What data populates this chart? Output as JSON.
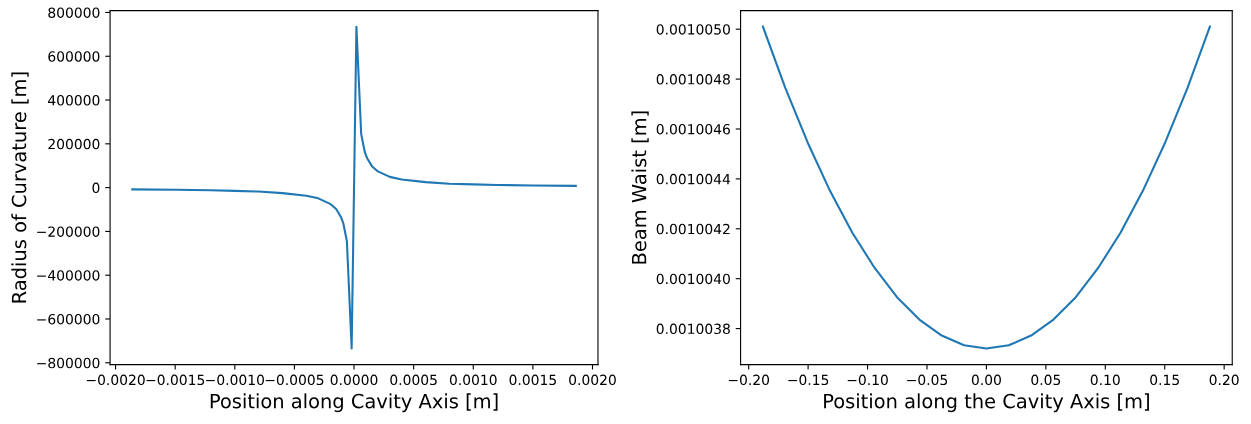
{
  "chart_data": [
    {
      "type": "line",
      "xlabel": "Position along Cavity Axis [m]",
      "ylabel": "Radius of Curvature [m]",
      "x": [
        -0.00186,
        -0.0015,
        -0.0012,
        -0.001,
        -0.0008,
        -0.0006,
        -0.0004,
        -0.0003,
        -0.0002,
        -0.00015,
        -0.00011,
        -9e-05,
        -6e-05,
        -2e-05,
        2e-05,
        6e-05,
        9e-05,
        0.00011,
        0.00015,
        0.0002,
        0.0003,
        0.0004,
        0.0006,
        0.0008,
        0.001,
        0.0012,
        0.0015,
        0.00186
      ],
      "series": [
        {
          "color": "#1f77b4",
          "values": [
            -8000,
            -10000,
            -12000,
            -15000,
            -18000,
            -25000,
            -37000,
            -49000,
            -74000,
            -98000,
            -134000,
            -163000,
            -245000,
            -735000,
            735000,
            245000,
            163000,
            134000,
            98000,
            74000,
            49000,
            37000,
            25000,
            18000,
            15000,
            12000,
            10000,
            8000
          ]
        }
      ],
      "xlim": [
        -0.002046,
        0.002046
      ],
      "ylim": [
        -808500,
        808500
      ],
      "xticks": [
        {
          "value": -0.002,
          "label": "−0.0020"
        },
        {
          "value": -0.0015,
          "label": "−0.0015"
        },
        {
          "value": -0.001,
          "label": "−0.0010"
        },
        {
          "value": -0.0005,
          "label": "−0.0005"
        },
        {
          "value": 0,
          "label": "0.0000"
        },
        {
          "value": 0.0005,
          "label": "0.0005"
        },
        {
          "value": 0.001,
          "label": "0.0010"
        },
        {
          "value": 0.0015,
          "label": "0.0015"
        },
        {
          "value": 0.002,
          "label": "0.0020"
        }
      ],
      "yticks": [
        {
          "value": -800000,
          "label": "−800000"
        },
        {
          "value": -600000,
          "label": "−600000"
        },
        {
          "value": -400000,
          "label": "−400000"
        },
        {
          "value": -200000,
          "label": "−200000"
        },
        0,
        200000,
        400000,
        600000,
        800000
      ],
      "grid": false
    },
    {
      "type": "line",
      "xlabel": "Position along the Cavity Axis [m]",
      "ylabel": "Beam Waist [m]",
      "x": [
        -0.188,
        -0.1692,
        -0.1504,
        -0.1316,
        -0.1128,
        -0.094,
        -0.0752,
        -0.0564,
        -0.0376,
        -0.0188,
        0,
        0.0188,
        0.0376,
        0.0564,
        0.0752,
        0.094,
        0.1128,
        0.1316,
        0.1504,
        0.1692,
        0.188
      ],
      "series": [
        {
          "color": "#1f77b4",
          "values": [
            0.00100501,
            0.001004765,
            0.001004546,
            0.001004352,
            0.001004184,
            0.001004043,
            0.001003926,
            0.001003836,
            0.001003772,
            0.001003733,
            0.00100372,
            0.001003733,
            0.001003772,
            0.001003836,
            0.001003926,
            0.001004043,
            0.001004184,
            0.001004352,
            0.001004546,
            0.001004765,
            0.00100501
          ]
        }
      ],
      "xlim": [
        -0.2068,
        0.2068
      ],
      "ylim": [
        0.0010036555,
        0.0010050745
      ],
      "xticks": [
        {
          "value": -0.2,
          "label": "−0.20"
        },
        {
          "value": -0.15,
          "label": "−0.15"
        },
        {
          "value": -0.1,
          "label": "−0.10"
        },
        {
          "value": -0.05,
          "label": "−0.05"
        },
        {
          "value": 0,
          "label": "0.00"
        },
        {
          "value": 0.05,
          "label": "0.05"
        },
        {
          "value": 0.1,
          "label": "0.10"
        },
        {
          "value": 0.15,
          "label": "0.15"
        },
        {
          "value": 0.2,
          "label": "0.20"
        }
      ],
      "yticks": [
        {
          "value": 0.0010038,
          "label": "0.0010038"
        },
        {
          "value": 0.001004,
          "label": "0.0010040"
        },
        {
          "value": 0.0010042,
          "label": "0.0010042"
        },
        {
          "value": 0.0010044,
          "label": "0.0010044"
        },
        {
          "value": 0.0010046,
          "label": "0.0010046"
        },
        {
          "value": 0.0010048,
          "label": "0.0010048"
        },
        {
          "value": 0.001005,
          "label": "0.0010050"
        }
      ],
      "grid": false
    }
  ]
}
